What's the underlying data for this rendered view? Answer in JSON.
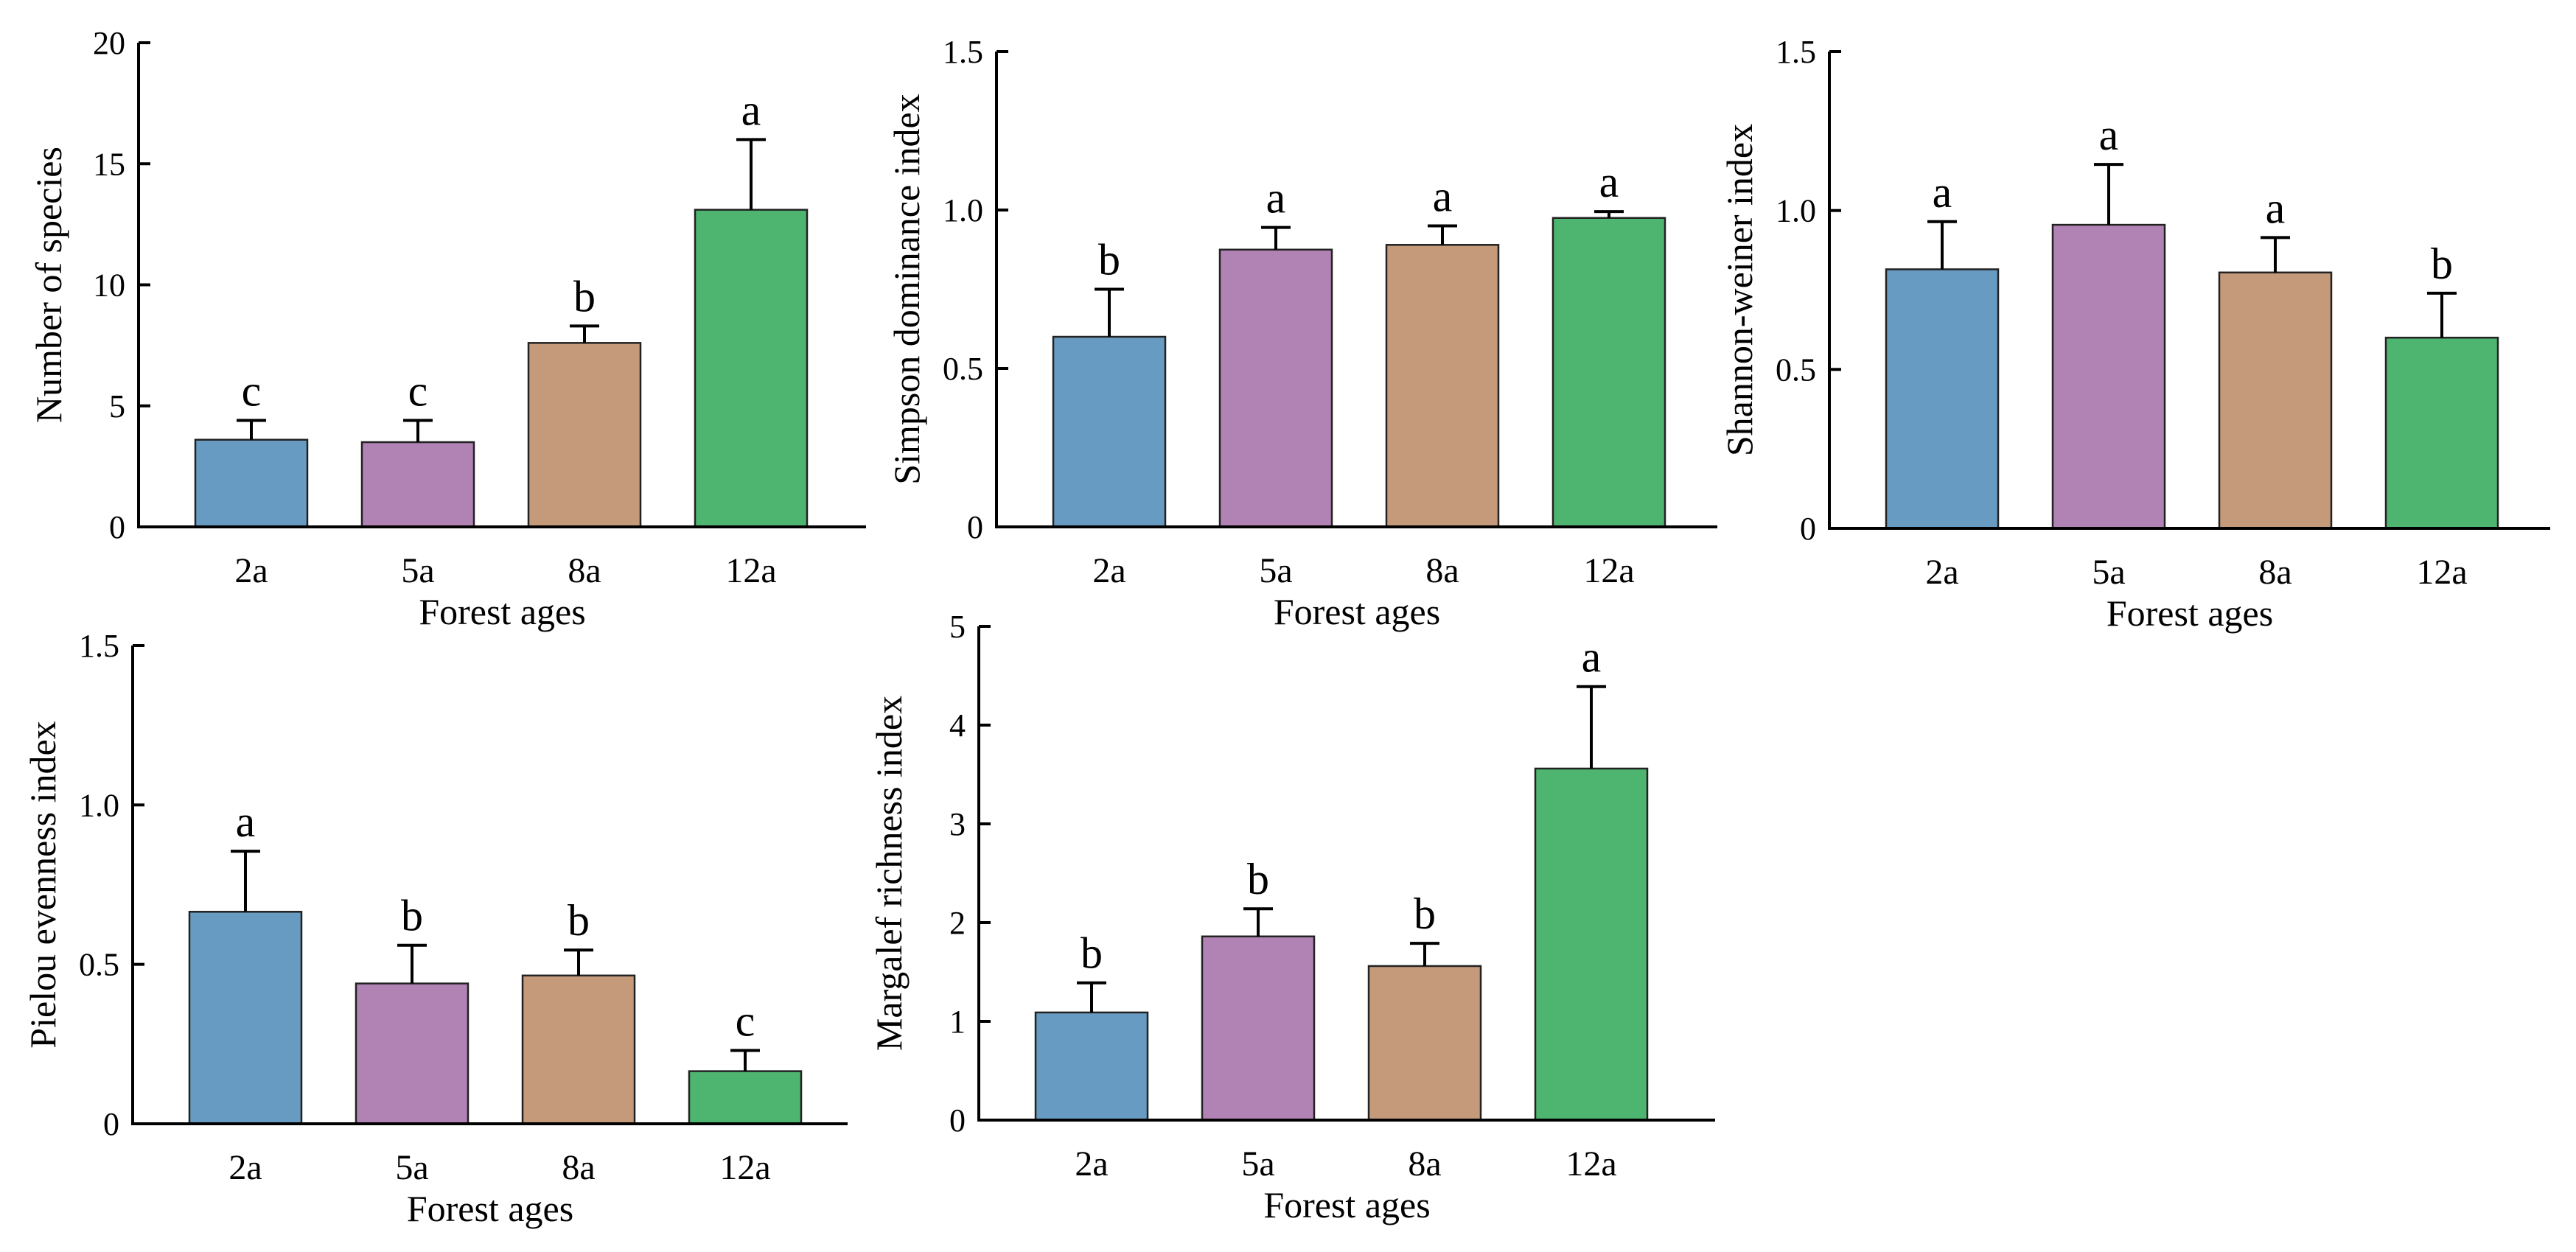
{
  "colors": {
    "2a": "#679bc1",
    "5a": "#b183b5",
    "8a": "#c49a7b",
    "12a": "#4eb570"
  },
  "chart_data": [
    {
      "type": "bar",
      "xlabel": "Forest ages",
      "ylabel": "Number of species",
      "categories": [
        "2a",
        "5a",
        "8a",
        "12a"
      ],
      "values": [
        3.6,
        3.5,
        7.6,
        13.1
      ],
      "errors": [
        0.8,
        0.9,
        0.7,
        2.9
      ],
      "letters": [
        "c",
        "c",
        "b",
        "a"
      ],
      "ylim": [
        0,
        20
      ],
      "yticks": [
        0,
        5,
        10,
        15,
        20
      ],
      "ytick_labels": [
        "0",
        "5",
        "10",
        "15",
        "20"
      ]
    },
    {
      "type": "bar",
      "xlabel": "Forest ages",
      "ylabel": "Simpson dominance index",
      "categories": [
        "2a",
        "5a",
        "8a",
        "12a"
      ],
      "values": [
        0.6,
        0.875,
        0.89,
        0.975
      ],
      "errors": [
        0.15,
        0.07,
        0.06,
        0.02
      ],
      "letters": [
        "b",
        "a",
        "a",
        "a"
      ],
      "ylim": [
        0,
        1.5
      ],
      "yticks": [
        0,
        0.5,
        1.0,
        1.5
      ],
      "ytick_labels": [
        "0",
        "0.5",
        "1.0",
        "1.5"
      ]
    },
    {
      "type": "bar",
      "xlabel": "Forest ages",
      "ylabel": "Shannon-weiner index",
      "categories": [
        "2a",
        "5a",
        "8a",
        "12a"
      ],
      "values": [
        0.815,
        0.955,
        0.805,
        0.6
      ],
      "errors": [
        0.15,
        0.19,
        0.11,
        0.14
      ],
      "letters": [
        "a",
        "a",
        "a",
        "b"
      ],
      "ylim": [
        0,
        1.5
      ],
      "yticks": [
        0,
        0.5,
        1.0,
        1.5
      ],
      "ytick_labels": [
        "0",
        "0.5",
        "1.0",
        "1.5"
      ]
    },
    {
      "type": "bar",
      "xlabel": "Forest ages",
      "ylabel": "Pielou evenness index",
      "categories": [
        "2a",
        "5a",
        "8a",
        "12a"
      ],
      "values": [
        0.665,
        0.44,
        0.465,
        0.165
      ],
      "errors": [
        0.19,
        0.12,
        0.08,
        0.065
      ],
      "letters": [
        "a",
        "b",
        "b",
        "c"
      ],
      "ylim": [
        0,
        1.5
      ],
      "yticks": [
        0,
        0.5,
        1.0,
        1.5
      ],
      "ytick_labels": [
        "0",
        "0.5",
        "1.0",
        "1.5"
      ]
    },
    {
      "type": "bar",
      "xlabel": "Forest ages",
      "ylabel": "Margalef richness index",
      "categories": [
        "2a",
        "5a",
        "8a",
        "12a"
      ],
      "values": [
        1.09,
        1.86,
        1.56,
        3.56
      ],
      "errors": [
        0.3,
        0.28,
        0.23,
        0.83
      ],
      "letters": [
        "b",
        "b",
        "b",
        "a"
      ],
      "ylim": [
        0,
        5
      ],
      "yticks": [
        0,
        1,
        2,
        3,
        4,
        5
      ],
      "ytick_labels": [
        "0",
        "1",
        "2",
        "3",
        "4",
        "5"
      ]
    }
  ]
}
